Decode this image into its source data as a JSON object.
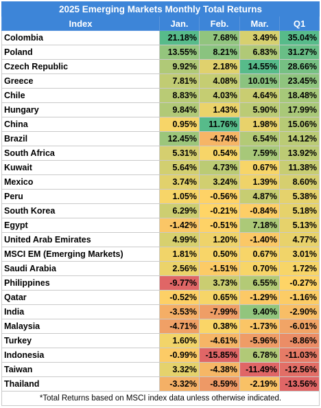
{
  "chart_data": {
    "type": "table",
    "title": "2025 Emerging Markets Monthly Total Returns",
    "columns": [
      "Index",
      "Jan.",
      "Feb.",
      "Mar.",
      "Q1"
    ],
    "rows": [
      {
        "name": "Colombia",
        "values": [
          21.18,
          7.68,
          3.49,
          35.04
        ]
      },
      {
        "name": "Poland",
        "values": [
          13.55,
          8.21,
          6.83,
          31.27
        ]
      },
      {
        "name": "Czech Republic",
        "values": [
          9.92,
          2.18,
          14.55,
          28.66
        ]
      },
      {
        "name": "Greece",
        "values": [
          7.81,
          4.08,
          10.01,
          23.45
        ]
      },
      {
        "name": "Chile",
        "values": [
          8.83,
          4.03,
          4.64,
          18.48
        ]
      },
      {
        "name": "Hungary",
        "values": [
          9.84,
          1.43,
          5.9,
          17.99
        ]
      },
      {
        "name": "China",
        "values": [
          0.95,
          11.76,
          1.98,
          15.06
        ]
      },
      {
        "name": "Brazil",
        "values": [
          12.45,
          -4.74,
          6.54,
          14.12
        ]
      },
      {
        "name": "South Africa",
        "values": [
          5.31,
          0.54,
          7.59,
          13.92
        ]
      },
      {
        "name": "Kuwait",
        "values": [
          5.64,
          4.73,
          0.67,
          11.38
        ]
      },
      {
        "name": "Mexico",
        "values": [
          3.74,
          3.24,
          1.39,
          8.6
        ]
      },
      {
        "name": "Peru",
        "values": [
          1.05,
          -0.56,
          4.87,
          5.38
        ]
      },
      {
        "name": "South Korea",
        "values": [
          6.29,
          -0.21,
          -0.84,
          5.18
        ]
      },
      {
        "name": "Egypt",
        "values": [
          -1.42,
          -0.51,
          7.18,
          5.13
        ]
      },
      {
        "name": "United Arab Emirates",
        "values": [
          4.99,
          1.2,
          -1.4,
          4.77
        ]
      },
      {
        "name": "MSCI EM (Emerging Markets)",
        "values": [
          1.81,
          0.5,
          0.67,
          3.01
        ]
      },
      {
        "name": "Saudi Arabia",
        "values": [
          2.56,
          -1.51,
          0.7,
          1.72
        ]
      },
      {
        "name": "Philippines",
        "values": [
          -9.77,
          3.73,
          6.55,
          -0.27
        ]
      },
      {
        "name": "Qatar",
        "values": [
          -0.52,
          0.65,
          -1.29,
          -1.16
        ]
      },
      {
        "name": "India",
        "values": [
          -3.53,
          -7.99,
          9.4,
          -2.9
        ]
      },
      {
        "name": "Malaysia",
        "values": [
          -4.71,
          0.38,
          -1.73,
          -6.01
        ]
      },
      {
        "name": "Turkey",
        "values": [
          1.6,
          -4.61,
          -5.96,
          -8.86
        ]
      },
      {
        "name": "Indonesia",
        "values": [
          -0.99,
          -15.85,
          6.78,
          -11.03
        ]
      },
      {
        "name": "Taiwan",
        "values": [
          3.32,
          -4.38,
          -11.49,
          -12.56
        ]
      },
      {
        "name": "Thailand",
        "values": [
          -3.32,
          -8.59,
          -2.19,
          -13.56
        ]
      }
    ],
    "value_format": "%",
    "color_scale": {
      "low": "#e06666",
      "mid": "#ffd666",
      "high": "#57bb8a"
    },
    "footnote": "*Total Returns based on MSCI index data unless otherwise indicated."
  }
}
